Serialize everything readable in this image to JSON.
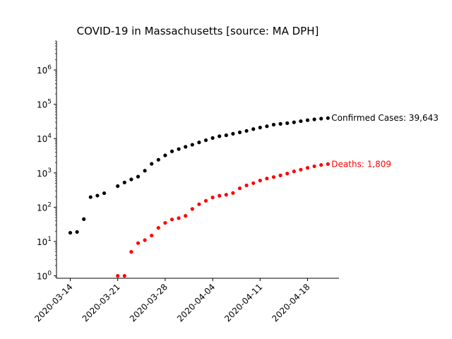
{
  "chart_data": {
    "type": "scatter",
    "title": "COVID-19 in Massachusetts [source: MA DPH]",
    "xlabel": "",
    "ylabel": "",
    "y_scale": "log",
    "ylim": [
      0.85,
      7000000
    ],
    "xlim": [
      "2020-03-13",
      "2020-04-21"
    ],
    "x_ticks": [
      "2020-03-14",
      "2020-03-21",
      "2020-03-28",
      "2020-04-04",
      "2020-04-11",
      "2020-04-18"
    ],
    "y_ticks": [
      {
        "value": 1,
        "base": "10",
        "exp": "0"
      },
      {
        "value": 10,
        "base": "10",
        "exp": "1"
      },
      {
        "value": 100,
        "base": "10",
        "exp": "2"
      },
      {
        "value": 1000,
        "base": "10",
        "exp": "3"
      },
      {
        "value": 10000,
        "base": "10",
        "exp": "4"
      },
      {
        "value": 100000,
        "base": "10",
        "exp": "5"
      },
      {
        "value": 1000000,
        "base": "10",
        "exp": "6"
      }
    ],
    "grid": false,
    "series": [
      {
        "color": "#000000",
        "annotation": "Confirmed Cases: 39,643",
        "points": [
          {
            "x": "2020-03-14",
            "y": 18
          },
          {
            "x": "2020-03-15",
            "y": 19
          },
          {
            "x": "2020-03-16",
            "y": 45
          },
          {
            "x": "2020-03-17",
            "y": 197
          },
          {
            "x": "2020-03-18",
            "y": 218
          },
          {
            "x": "2020-03-19",
            "y": 256
          },
          {
            "x": "2020-03-21",
            "y": 413
          },
          {
            "x": "2020-03-22",
            "y": 525
          },
          {
            "x": "2020-03-23",
            "y": 646
          },
          {
            "x": "2020-03-24",
            "y": 777
          },
          {
            "x": "2020-03-25",
            "y": 1159
          },
          {
            "x": "2020-03-26",
            "y": 1838
          },
          {
            "x": "2020-03-27",
            "y": 2417
          },
          {
            "x": "2020-03-28",
            "y": 3240
          },
          {
            "x": "2020-03-29",
            "y": 4257
          },
          {
            "x": "2020-03-30",
            "y": 4955
          },
          {
            "x": "2020-03-31",
            "y": 5752
          },
          {
            "x": "2020-04-01",
            "y": 6620
          },
          {
            "x": "2020-04-02",
            "y": 7738
          },
          {
            "x": "2020-04-03",
            "y": 8966
          },
          {
            "x": "2020-04-04",
            "y": 10402
          },
          {
            "x": "2020-04-05",
            "y": 11736
          },
          {
            "x": "2020-04-06",
            "y": 12500
          },
          {
            "x": "2020-04-07",
            "y": 13837
          },
          {
            "x": "2020-04-08",
            "y": 15202
          },
          {
            "x": "2020-04-09",
            "y": 16790
          },
          {
            "x": "2020-04-10",
            "y": 18941
          },
          {
            "x": "2020-04-11",
            "y": 20974
          },
          {
            "x": "2020-04-12",
            "y": 22860
          },
          {
            "x": "2020-04-13",
            "y": 25475
          },
          {
            "x": "2020-04-14",
            "y": 26867
          },
          {
            "x": "2020-04-15",
            "y": 28163
          },
          {
            "x": "2020-04-16",
            "y": 29918
          },
          {
            "x": "2020-04-17",
            "y": 32181
          },
          {
            "x": "2020-04-18",
            "y": 34402
          },
          {
            "x": "2020-04-19",
            "y": 36372
          },
          {
            "x": "2020-04-20",
            "y": 38077
          },
          {
            "x": "2020-04-21",
            "y": 39643
          }
        ]
      },
      {
        "color": "#ff0000",
        "annotation": "Deaths: 1,809",
        "points": [
          {
            "x": "2020-03-21",
            "y": 1
          },
          {
            "x": "2020-03-22",
            "y": 1
          },
          {
            "x": "2020-03-23",
            "y": 5
          },
          {
            "x": "2020-03-24",
            "y": 9
          },
          {
            "x": "2020-03-25",
            "y": 11
          },
          {
            "x": "2020-03-26",
            "y": 15
          },
          {
            "x": "2020-03-27",
            "y": 25
          },
          {
            "x": "2020-03-28",
            "y": 35
          },
          {
            "x": "2020-03-29",
            "y": 44
          },
          {
            "x": "2020-03-30",
            "y": 48
          },
          {
            "x": "2020-03-31",
            "y": 56
          },
          {
            "x": "2020-04-01",
            "y": 89
          },
          {
            "x": "2020-04-02",
            "y": 122
          },
          {
            "x": "2020-04-03",
            "y": 154
          },
          {
            "x": "2020-04-04",
            "y": 192
          },
          {
            "x": "2020-04-05",
            "y": 216
          },
          {
            "x": "2020-04-06",
            "y": 231
          },
          {
            "x": "2020-04-07",
            "y": 260
          },
          {
            "x": "2020-04-08",
            "y": 356
          },
          {
            "x": "2020-04-09",
            "y": 433
          },
          {
            "x": "2020-04-10",
            "y": 503
          },
          {
            "x": "2020-04-11",
            "y": 599
          },
          {
            "x": "2020-04-12",
            "y": 686
          },
          {
            "x": "2020-04-13",
            "y": 756
          },
          {
            "x": "2020-04-14",
            "y": 844
          },
          {
            "x": "2020-04-15",
            "y": 957
          },
          {
            "x": "2020-04-16",
            "y": 1108
          },
          {
            "x": "2020-04-17",
            "y": 1245
          },
          {
            "x": "2020-04-18",
            "y": 1404
          },
          {
            "x": "2020-04-19",
            "y": 1560
          },
          {
            "x": "2020-04-20",
            "y": 1706
          },
          {
            "x": "2020-04-21",
            "y": 1809
          }
        ]
      }
    ]
  }
}
